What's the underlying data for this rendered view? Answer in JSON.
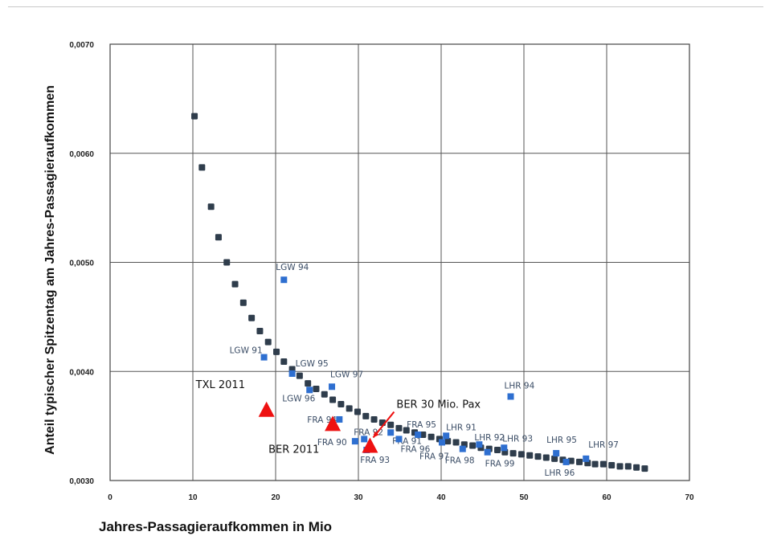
{
  "chart_data": {
    "type": "scatter",
    "title": "",
    "xlabel": "Jahres-Passagieraufkommen in Mio",
    "ylabel": "Anteil typischer Spitzentag am Jahres-Passagieraufkommen",
    "xlim": [
      0,
      70
    ],
    "ylim": [
      0.003,
      0.007
    ],
    "x_ticks": [
      "0",
      "10",
      "20",
      "30",
      "40",
      "50",
      "60",
      "70"
    ],
    "y_ticks": [
      "0,0030",
      "0,0040",
      "0,0050",
      "0,0060",
      "0,0070"
    ],
    "grid": true,
    "colors": {
      "curve": "#2f3d4c",
      "airports": "#2e6fd0",
      "ber": "#ee1111",
      "arrow": "#ee1111"
    },
    "series": [
      {
        "marker": "square",
        "points": [
          [
            10.2,
            0.00634
          ],
          [
            11.1,
            0.00587
          ],
          [
            12.2,
            0.00551
          ],
          [
            13.1,
            0.00523
          ],
          [
            14.1,
            0.005
          ],
          [
            15.1,
            0.0048
          ],
          [
            16.1,
            0.00463
          ],
          [
            17.1,
            0.00449
          ],
          [
            18.1,
            0.00437
          ],
          [
            19.1,
            0.00427
          ],
          [
            20.1,
            0.00418
          ],
          [
            21.0,
            0.00409
          ],
          [
            22.0,
            0.00402
          ],
          [
            22.9,
            0.00396
          ],
          [
            23.9,
            0.00389
          ],
          [
            24.9,
            0.00384
          ],
          [
            25.9,
            0.00379
          ],
          [
            26.9,
            0.00374
          ],
          [
            27.9,
            0.0037
          ],
          [
            28.9,
            0.00366
          ],
          [
            29.9,
            0.00363
          ],
          [
            30.9,
            0.00359
          ],
          [
            31.9,
            0.00356
          ],
          [
            32.9,
            0.00353
          ],
          [
            33.9,
            0.00351
          ],
          [
            34.9,
            0.00348
          ],
          [
            35.8,
            0.00346
          ],
          [
            36.8,
            0.00344
          ],
          [
            37.8,
            0.00342
          ],
          [
            38.8,
            0.0034
          ],
          [
            39.8,
            0.00338
          ],
          [
            40.8,
            0.00336
          ],
          [
            41.8,
            0.00335
          ],
          [
            42.8,
            0.00333
          ],
          [
            43.8,
            0.00332
          ],
          [
            44.8,
            0.0033
          ],
          [
            45.8,
            0.00329
          ],
          [
            46.8,
            0.00328
          ],
          [
            47.7,
            0.00326
          ],
          [
            48.7,
            0.00325
          ],
          [
            49.7,
            0.00324
          ],
          [
            50.7,
            0.00323
          ],
          [
            51.7,
            0.00322
          ],
          [
            52.7,
            0.00321
          ],
          [
            53.7,
            0.0032
          ],
          [
            54.7,
            0.00319
          ],
          [
            55.7,
            0.00318
          ],
          [
            56.7,
            0.00317
          ],
          [
            57.7,
            0.00316
          ],
          [
            58.6,
            0.00315
          ],
          [
            59.6,
            0.00315
          ],
          [
            60.6,
            0.00314
          ],
          [
            61.6,
            0.00313
          ],
          [
            62.6,
            0.00313
          ],
          [
            63.6,
            0.00312
          ],
          [
            64.6,
            0.00311
          ]
        ]
      },
      {
        "marker": "square",
        "points": [
          {
            "x": 21.0,
            "y": 0.00484,
            "label": "LGW 94"
          },
          {
            "x": 18.6,
            "y": 0.00413,
            "label": "LGW 91"
          },
          {
            "x": 22.0,
            "y": 0.00398,
            "label": "LGW 95"
          },
          {
            "x": 24.1,
            "y": 0.00383,
            "label": "LGW 96"
          },
          {
            "x": 26.8,
            "y": 0.00386,
            "label": "LGW 97"
          },
          {
            "x": 27.7,
            "y": 0.00356,
            "label": "FRA 94"
          },
          {
            "x": 29.6,
            "y": 0.00336,
            "label": "FRA 90"
          },
          {
            "x": 30.7,
            "y": 0.00338,
            "label": "FRA 92"
          },
          {
            "x": 31.0,
            "y": 0.00328,
            "label": "FRA 93"
          },
          {
            "x": 33.9,
            "y": 0.00344,
            "label": "FRA 91"
          },
          {
            "x": 37.2,
            "y": 0.00342,
            "label": "FRA 95"
          },
          {
            "x": 34.9,
            "y": 0.00338,
            "label": "FRA 96"
          },
          {
            "x": 40.1,
            "y": 0.00335,
            "label": "FRA 97"
          },
          {
            "x": 42.6,
            "y": 0.00329,
            "label": "FRA 98"
          },
          {
            "x": 45.6,
            "y": 0.00326,
            "label": "FRA 99"
          },
          {
            "x": 40.6,
            "y": 0.00341,
            "label": "LHR 91"
          },
          {
            "x": 44.6,
            "y": 0.00333,
            "label": "LHR 92"
          },
          {
            "x": 47.6,
            "y": 0.0033,
            "label": "LHR 93"
          },
          {
            "x": 48.4,
            "y": 0.00377,
            "label": "LHR 94"
          },
          {
            "x": 53.9,
            "y": 0.00325,
            "label": "LHR 95"
          },
          {
            "x": 55.1,
            "y": 0.00317,
            "label": "LHR 96"
          },
          {
            "x": 57.5,
            "y": 0.0032,
            "label": "LHR 97"
          }
        ]
      },
      {
        "marker": "triangle",
        "points": [
          {
            "x": 18.9,
            "y": 0.00365,
            "label": "TXL 2011"
          },
          {
            "x": 26.9,
            "y": 0.00352,
            "label": "BER 2011"
          },
          {
            "x": 31.4,
            "y": 0.00332,
            "label": "BER 30 Mio. Pax"
          }
        ]
      }
    ]
  }
}
